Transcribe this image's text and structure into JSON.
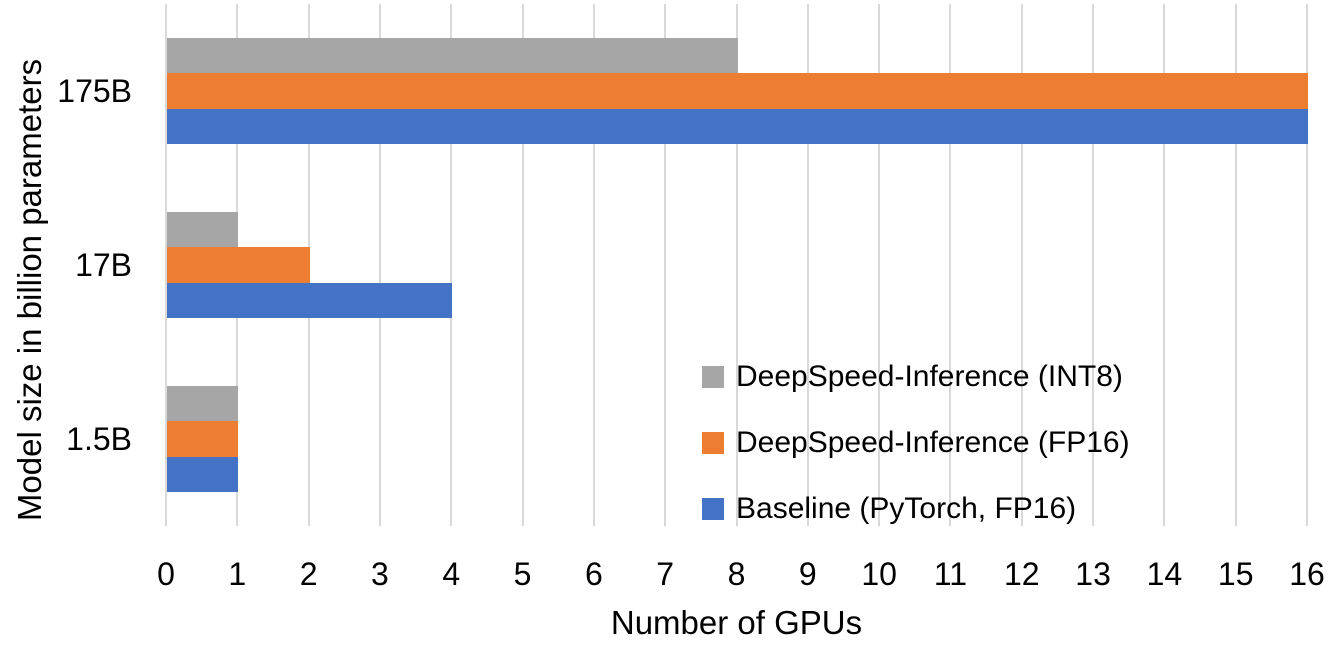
{
  "chart_data": {
    "type": "bar",
    "orientation": "horizontal",
    "title": "",
    "xlabel": "Number of GPUs",
    "ylabel": "Model size in billion parameters",
    "categories": [
      "175B",
      "17B",
      "1.5B"
    ],
    "series": [
      {
        "name": "DeepSpeed-Inference (INT8)",
        "color": "#A6A6A6",
        "values": [
          8,
          1,
          1
        ]
      },
      {
        "name": "DeepSpeed-Inference (FP16)",
        "color": "#ED7D31",
        "values": [
          16,
          2,
          1
        ]
      },
      {
        "name": "Baseline (PyTorch, FP16)",
        "color": "#4472C4",
        "values": [
          16,
          4,
          1
        ]
      }
    ],
    "xlim": [
      0,
      16
    ],
    "xticks": [
      0,
      1,
      2,
      3,
      4,
      5,
      6,
      7,
      8,
      9,
      10,
      11,
      12,
      13,
      14,
      15,
      16
    ],
    "grid": true,
    "gridline_color": "#D9D9D9",
    "text_color": "#000000",
    "background_color": "#FFFFFF",
    "legend_position": "inside-lower-right",
    "legend_order": [
      "DeepSpeed-Inference (INT8)",
      "DeepSpeed-Inference (FP16)",
      "Baseline (PyTorch, FP16)"
    ]
  }
}
